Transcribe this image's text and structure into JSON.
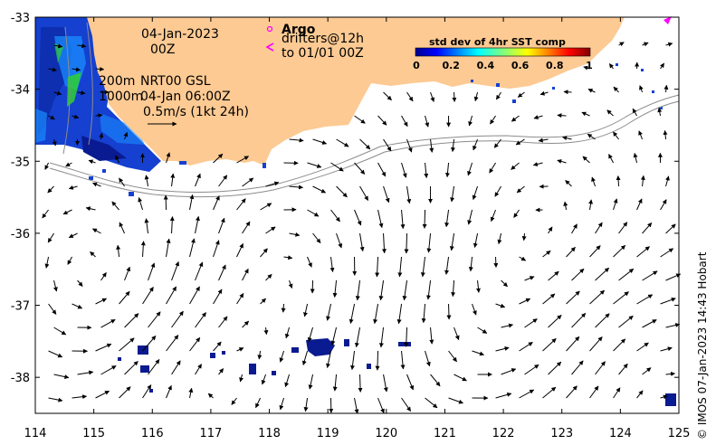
{
  "map": {
    "date_line1": "04-Jan-2023",
    "date_line2": "00Z",
    "contour_200": "200m",
    "contour_1000": "1000m",
    "product": "NRT00 GSL",
    "product_time": "04-Jan 06:00Z",
    "scale_label": "0.5m/s (1kt 24h)",
    "argo_label": "Argo",
    "drifters_line1": "drifters@12h",
    "drifters_line2": "to 01/01 00Z",
    "colorbar_title": "std dev of 4hr SST comp",
    "colorbar_ticks": [
      "0",
      "0.2",
      "0.4",
      "0.6",
      "0.8",
      "1"
    ],
    "credit": "© IMOS 07-Jan-2023 14:43 Hobart",
    "lon_ticks": [
      "114",
      "115",
      "116",
      "117",
      "118",
      "119",
      "120",
      "121",
      "122",
      "123",
      "124",
      "125"
    ],
    "lat_ticks": [
      "-33",
      "-34",
      "-35",
      "-36",
      "-37",
      "-38"
    ],
    "colors": {
      "land": "#fdca93",
      "argo": "#ff00ff",
      "sst_low": "#0000b4",
      "sst_mid": "#00a0ff",
      "sst_high": "#30ff30"
    },
    "extent": {
      "lon": [
        114,
        125
      ],
      "lat": [
        -38.5,
        -33
      ]
    }
  }
}
